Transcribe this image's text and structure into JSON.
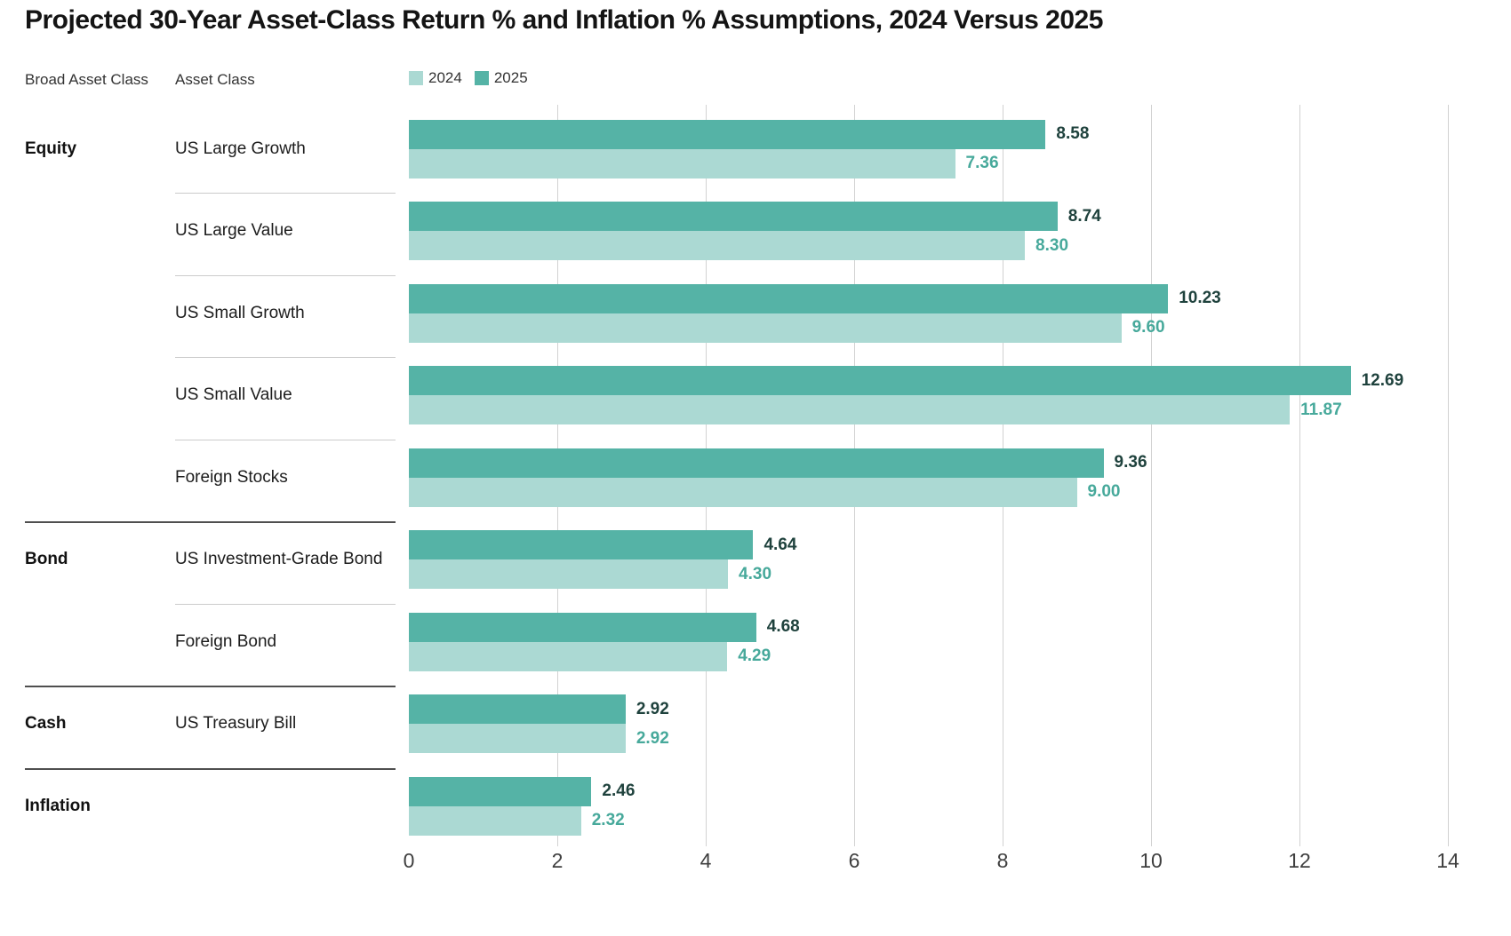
{
  "title": "Projected 30-Year Asset-Class Return % and Inflation % Assumptions, 2024 Versus 2025",
  "columns": {
    "broad_asset_class": "Broad Asset Class",
    "asset_class": "Asset Class"
  },
  "chart_data": {
    "type": "bar",
    "orientation": "horizontal",
    "title": "Projected 30-Year Asset-Class Return % and Inflation % Assumptions, 2024 Versus 2025",
    "xlim": [
      0,
      14
    ],
    "x_ticks": [
      0,
      2,
      4,
      6,
      8,
      10,
      12,
      14
    ],
    "grid": "vertical",
    "legend_position": "top",
    "value_decimals": 2,
    "categories": [
      "US Large Growth",
      "US Large Value",
      "US Small Growth",
      "US Small Value",
      "Foreign Stocks",
      "US Investment-Grade Bond",
      "Foreign Bond",
      "US Treasury Bill",
      ""
    ],
    "groups": [
      "Equity",
      "",
      "",
      "",
      "",
      "Bond",
      "",
      "Cash",
      "Inflation"
    ],
    "separators": [
      null,
      "light",
      "light",
      "light",
      "light",
      "dark",
      "light",
      "dark",
      "dark"
    ],
    "series": [
      {
        "name": "2024",
        "color": "#abd9d3",
        "label_color": "#47a99b",
        "values": [
          7.36,
          8.3,
          9.6,
          11.87,
          9.0,
          4.3,
          4.29,
          2.92,
          2.32
        ]
      },
      {
        "name": "2025",
        "color": "#55b3a6",
        "label_color": "#1f423d",
        "values": [
          8.58,
          8.74,
          10.23,
          12.69,
          9.36,
          4.64,
          4.68,
          2.92,
          2.46
        ]
      }
    ]
  },
  "colors": {
    "background": "#ffffff",
    "gridline": "#d2d2d2",
    "separator_light": "#cbcbcb",
    "separator_dark": "#4f4f4f",
    "title_text": "#141414",
    "header_text": "#333333",
    "tick_text": "#3f3f3f"
  }
}
